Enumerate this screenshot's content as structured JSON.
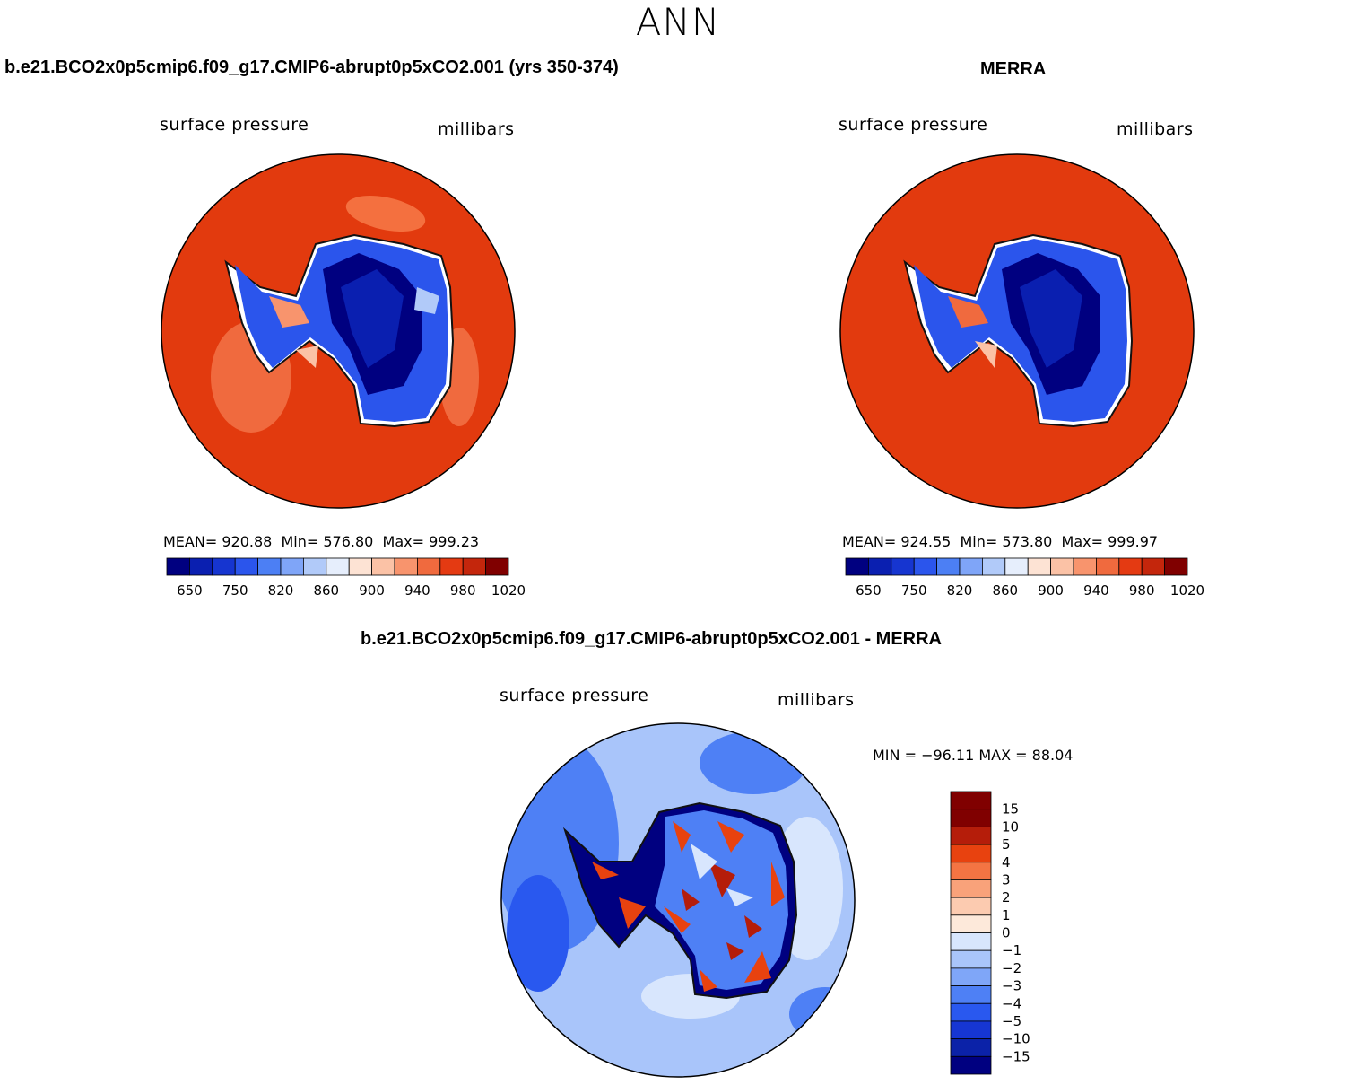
{
  "page": {
    "title": "ANN"
  },
  "colors": {
    "abs_scale": [
      "#000080",
      "#0a1fb0",
      "#1635d0",
      "#2b55ec",
      "#4c7ff4",
      "#7fa5f8",
      "#b1caf9",
      "#e6eefc",
      "#fde3d4",
      "#fbc2a6",
      "#f8946d",
      "#f06a3e",
      "#e43a12",
      "#c4260c",
      "#800000"
    ],
    "diff_scale": [
      "#000080",
      "#0b22a8",
      "#1636d3",
      "#2958ef",
      "#4e80f5",
      "#7fa6f8",
      "#a9c5fa",
      "#d8e6fd",
      "#fde9da",
      "#fccbb0",
      "#f9a27a",
      "#f47443",
      "#e8420f",
      "#b51d0a",
      "#800000"
    ]
  },
  "panels": [
    {
      "id": "model",
      "title": "b.e21.BCO2x0p5cmip6.f09_g17.CMIP6-abrupt0p5xCO2.001 (yrs 350-374)",
      "variable": "surface pressure",
      "units": "millibars",
      "stats": {
        "mean_label": "MEAN=",
        "mean": "920.88",
        "min_label": "Min=",
        "min": "576.80",
        "max_label": "Max=",
        "max": "999.23"
      }
    },
    {
      "id": "obs",
      "title": "MERRA",
      "variable": "surface pressure",
      "units": "millibars",
      "stats": {
        "mean_label": "MEAN=",
        "mean": "924.55",
        "min_label": "Min=",
        "min": "573.80",
        "max_label": "Max=",
        "max": "999.97"
      }
    },
    {
      "id": "diff",
      "title": "b.e21.BCO2x0p5cmip6.f09_g17.CMIP6-abrupt0p5xCO2.001 - MERRA",
      "variable": "surface pressure",
      "units": "millibars",
      "stats_line": "MIN = −96.11 MAX =   88.04"
    }
  ],
  "chart_data": [
    {
      "type": "heatmap",
      "projection": "south polar stereographic",
      "colorbar": {
        "orientation": "horizontal",
        "tick_labels": [
          "650",
          "750",
          "820",
          "860",
          "900",
          "940",
          "980",
          "1020"
        ],
        "n_colors": 15
      }
    },
    {
      "type": "heatmap",
      "projection": "south polar stereographic",
      "colorbar": {
        "orientation": "horizontal",
        "tick_labels": [
          "650",
          "750",
          "820",
          "860",
          "900",
          "940",
          "980",
          "1020"
        ],
        "n_colors": 15
      }
    },
    {
      "type": "heatmap",
      "projection": "south polar stereographic",
      "colorbar": {
        "orientation": "vertical",
        "tick_labels": [
          "15",
          "10",
          "5",
          "4",
          "3",
          "2",
          "1",
          "0",
          "−1",
          "−2",
          "−3",
          "−4",
          "−5",
          "−10",
          "−15"
        ],
        "n_colors": 16
      }
    }
  ]
}
